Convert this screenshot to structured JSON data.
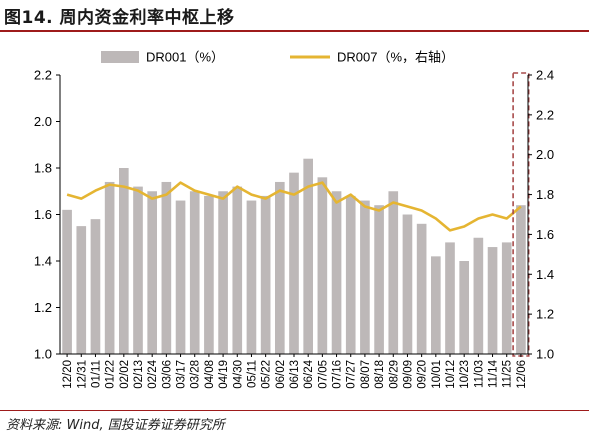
{
  "figure": {
    "title": "图14. 周内资金利率中枢上移",
    "source": "资料来源: Wind, 国投证券证券研究所"
  },
  "colors": {
    "bars": "#bdb8b8",
    "line": "#e5b532",
    "highlight": "#a84a4a",
    "title_rule": "#9e1b1b"
  },
  "chart_data": {
    "type": "bar+line",
    "legend_placement": "top-center",
    "grid": false,
    "x_tick_labels": [
      "12/20",
      "12/31",
      "01/11",
      "01/22",
      "02/02",
      "02/13",
      "02/24",
      "03/06",
      "03/17",
      "03/28",
      "04/08",
      "04/19",
      "04/30",
      "05/11",
      "05/22",
      "06/02",
      "06/13",
      "06/24",
      "07/05",
      "07/16",
      "07/27",
      "08/07",
      "08/18",
      "08/29",
      "09/09",
      "09/20",
      "10/01",
      "10/12",
      "10/23",
      "11/03",
      "11/14",
      "11/25",
      "12/06"
    ],
    "y_left": {
      "range": [
        1.0,
        2.2
      ],
      "ticks": [
        "1.0",
        "1.2",
        "1.4",
        "1.6",
        "1.8",
        "2.0",
        "2.2"
      ]
    },
    "y_right": {
      "range": [
        1.0,
        2.4
      ],
      "ticks": [
        "1.0",
        "1.2",
        "1.4",
        "1.6",
        "1.8",
        "2.0",
        "2.2",
        "2.4"
      ]
    },
    "series": [
      {
        "name": "DR001（%）",
        "kind": "bar",
        "axis": "left",
        "values": [
          1.62,
          1.55,
          1.58,
          1.74,
          1.8,
          1.72,
          1.7,
          1.74,
          1.66,
          1.7,
          1.68,
          1.7,
          1.72,
          1.66,
          1.68,
          1.74,
          1.78,
          1.84,
          1.76,
          1.7,
          1.68,
          1.66,
          1.64,
          1.7,
          1.6,
          1.56,
          1.42,
          1.48,
          1.4,
          1.5,
          1.46,
          1.48,
          1.64
        ]
      },
      {
        "name": "DR007（%，右轴）",
        "kind": "line",
        "axis": "right",
        "values": [
          1.8,
          1.78,
          1.82,
          1.85,
          1.84,
          1.82,
          1.78,
          1.8,
          1.86,
          1.82,
          1.8,
          1.78,
          1.84,
          1.8,
          1.78,
          1.82,
          1.8,
          1.84,
          1.86,
          1.76,
          1.8,
          1.74,
          1.72,
          1.76,
          1.74,
          1.72,
          1.68,
          1.62,
          1.64,
          1.68,
          1.7,
          1.68,
          1.74
        ]
      }
    ],
    "highlight_range": {
      "from": "12/06",
      "to": "12/06"
    }
  }
}
